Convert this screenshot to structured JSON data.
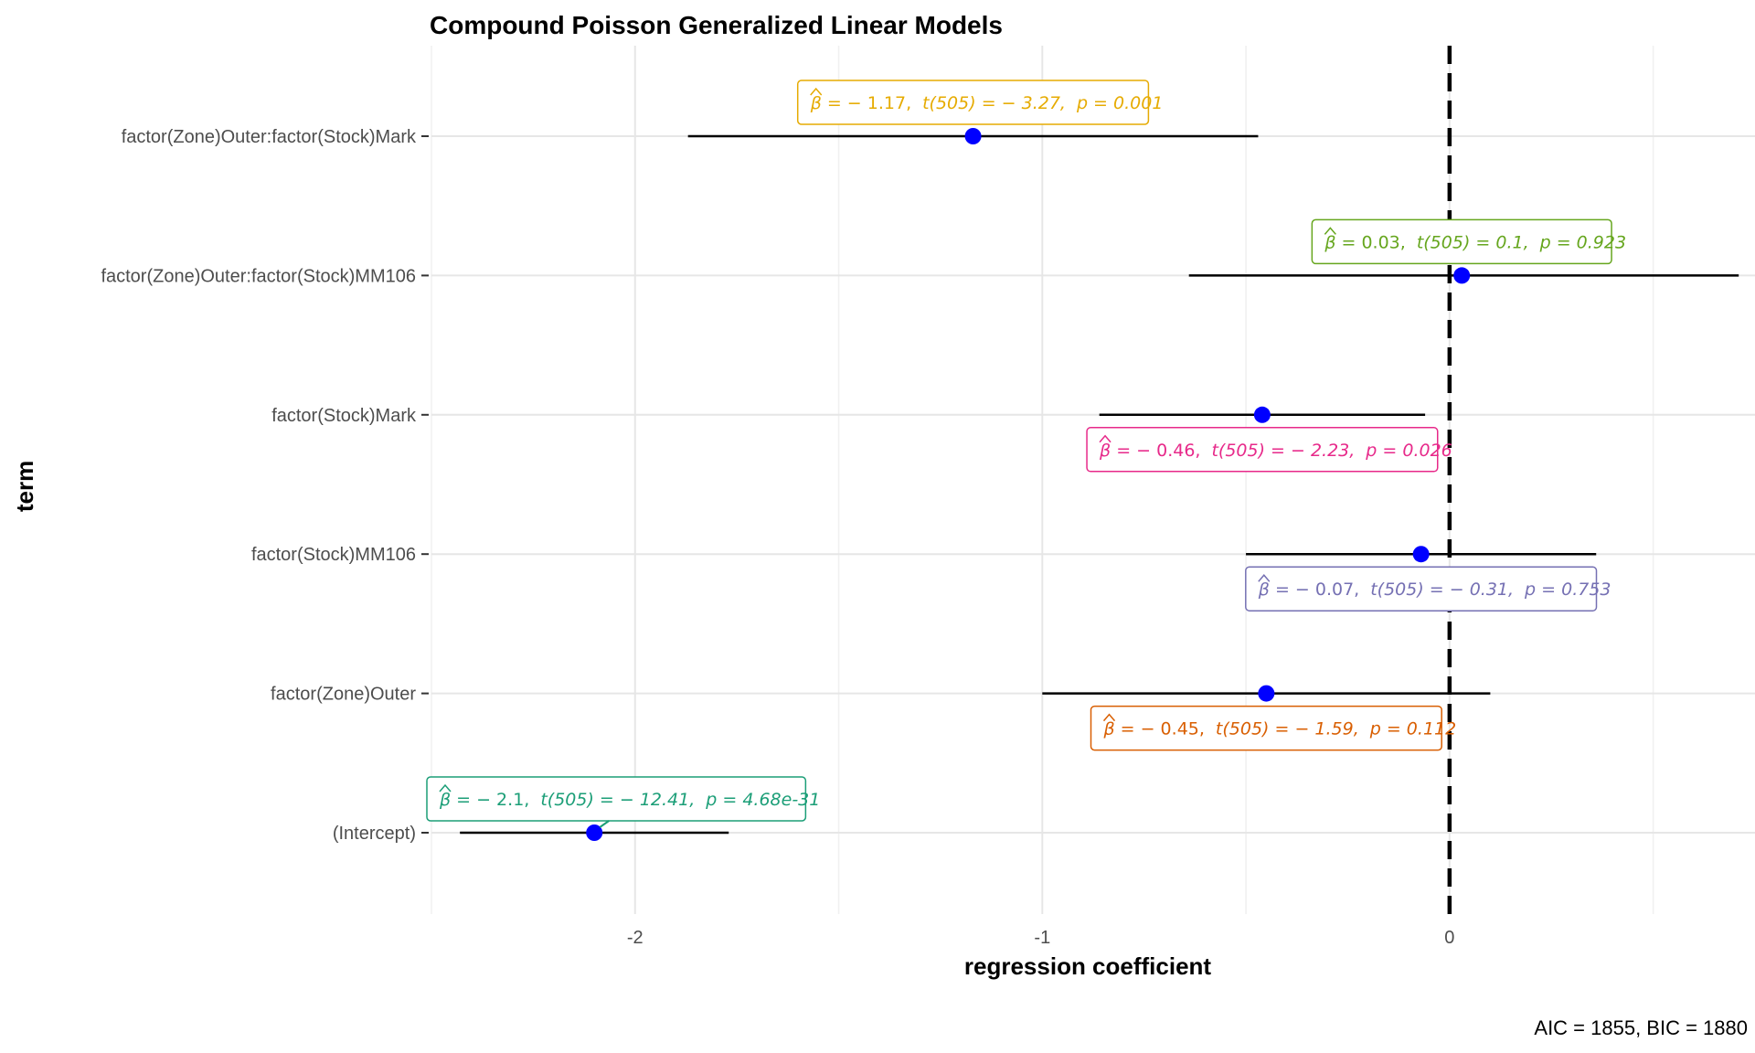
{
  "chart_data": {
    "type": "scatter",
    "title": "Compound Poisson Generalized Linear Models",
    "xlabel": "regression coefficient",
    "ylabel": "term",
    "caption": "AIC = 1855, BIC = 1880",
    "xlim": [
      -2.5,
      0.75
    ],
    "x_ticks": [
      -2,
      -1,
      0
    ],
    "x_tick_labels": [
      "-2",
      "-1",
      "0"
    ],
    "reference_line_x": 0,
    "grid": true,
    "point_color": "#0000ff",
    "terms": [
      {
        "term": "factor(Zone)Outer:factor(Stock)Mark",
        "estimate": -1.17,
        "conf_low": -1.87,
        "conf_high": -0.47,
        "label_color": "#e6ab02",
        "label_position": "above",
        "label": {
          "beta": "= − 1.17,",
          "t": "t(505) = − 3.27,",
          "p": "p = 0.001"
        }
      },
      {
        "term": "factor(Zone)Outer:factor(Stock)MM106",
        "estimate": 0.03,
        "conf_low": -0.64,
        "conf_high": 0.71,
        "label_color": "#66a61e",
        "label_position": "above",
        "label": {
          "beta": "= 0.03,",
          "t": "t(505) = 0.1,",
          "p": "p = 0.923"
        }
      },
      {
        "term": "factor(Stock)Mark",
        "estimate": -0.46,
        "conf_low": -0.86,
        "conf_high": -0.06,
        "label_color": "#e7298a",
        "label_position": "below",
        "label": {
          "beta": "= − 0.46,",
          "t": "t(505) = − 2.23,",
          "p": "p = 0.026"
        }
      },
      {
        "term": "factor(Stock)MM106",
        "estimate": -0.07,
        "conf_low": -0.5,
        "conf_high": 0.36,
        "label_color": "#7570b3",
        "label_position": "below",
        "label": {
          "beta": "= − 0.07,",
          "t": "t(505) = − 0.31,",
          "p": "p = 0.753"
        }
      },
      {
        "term": "factor(Zone)Outer",
        "estimate": -0.45,
        "conf_low": -1.0,
        "conf_high": 0.1,
        "label_color": "#d95f02",
        "label_position": "below",
        "label": {
          "beta": "= − 0.45,",
          "t": "t(505) = − 1.59,",
          "p": "p = 0.112"
        }
      },
      {
        "term": "(Intercept)",
        "estimate": -2.1,
        "conf_low": -2.43,
        "conf_high": -1.77,
        "label_color": "#1b9e77",
        "label_position": "above",
        "label": {
          "beta": "= − 2.1,",
          "t": "t(505) = − 12.41,",
          "p": "p = 4.68e-31"
        }
      }
    ]
  }
}
